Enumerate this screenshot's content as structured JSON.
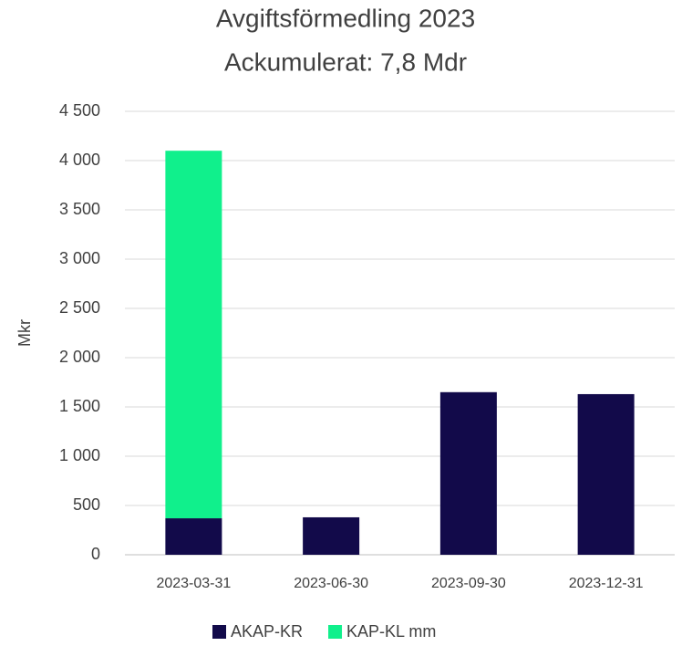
{
  "chart_data": {
    "type": "stacked_bar",
    "title": "Avgiftsförmedling 2023",
    "subtitle": "Ackumulerat: 7,8 Mdr",
    "y_label": "Mkr",
    "categories": [
      "2023-03-31",
      "2023-06-30",
      "2023-09-30",
      "2023-12-31"
    ],
    "series": [
      {
        "name": "AKAP-KR",
        "color": "#120a4a",
        "values": [
          370,
          380,
          1650,
          1630
        ]
      },
      {
        "name": "KAP-KL mm",
        "color": "#10f08c",
        "values": [
          3730,
          0,
          0,
          0
        ]
      }
    ],
    "ylim": [
      0,
      4500
    ],
    "yticks": [
      0,
      500,
      {
        "value": 1000,
        "label": "1 000"
      },
      {
        "value": 1500,
        "label": "1 500"
      },
      {
        "value": 2000,
        "label": "2 000"
      },
      {
        "value": 2500,
        "label": "2 500"
      },
      {
        "value": 3000,
        "label": "3 000"
      },
      {
        "value": 3500,
        "label": "3 500"
      },
      {
        "value": 4000,
        "label": "4 000"
      },
      {
        "value": 4500,
        "label": "4 500"
      }
    ],
    "grid": true,
    "legend": "bottom"
  }
}
